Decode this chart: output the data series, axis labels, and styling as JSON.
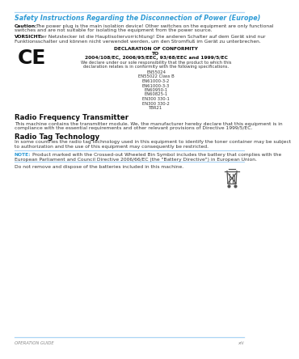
{
  "bg_color": "#ffffff",
  "line_color": "#aad4f5",
  "title_color": "#2e9bd6",
  "body_color": "#333333",
  "bold_color": "#111111",
  "note_color": "#2e9bd6",
  "footer_color": "#888888",
  "title": "Safety Instructions Regarding the Disconnection of Power (Europe)",
  "caution_label": "Caution:",
  "caution_line1": "The power plug is the main isolation device! Other switches on the equipment are only functional",
  "caution_line2": "switches and are not suitable for isolating the equipment from the power source.",
  "vorsicht_label": "VORSICHT:",
  "vorsicht_line1": "Der Netzstecker ist die Hauptisoliervorrichtung! Die anderen Schalter auf dem Gerät sind nur",
  "vorsicht_line2": "Funktionsschalter und können nicht verwendet werden, um den Stromfluß im Gerät zu unterbrechen.",
  "dec_title": "DECLARATION OF CONFORMITY",
  "dec_to": "TO",
  "dec_directives": "2004/108/EC, 2006/95/EEC, 93/68/EEC and 1999/5/EC",
  "dec_body1": "We declare under our sole responsibility that the product to which this",
  "dec_body2": "declaration relates is in conformity with the following specifications.",
  "standards": [
    "EN55024",
    "EN55022 Class B",
    "EN61000-3-2",
    "EN61000-3-3",
    "EN60950-1",
    "EN60825-1",
    "EN300 330-1",
    "EN300 330-2",
    "TBR21"
  ],
  "rf_heading": "Radio Frequency Transmitter",
  "rf_line1": "This machine contains the transmitter module. We, the manufacturer hereby declare that this equipment is in",
  "rf_line2": "compliance with the essential requirements and other relevant provisions of Directive 1999/5/EC.",
  "rt_heading": "Radio Tag Technology",
  "rt_line1": "In some countries the radio tag technology used in this equipment to identify the toner container may be subject",
  "rt_line2": "to authorization and the use of this equipment may consequently be restricted.",
  "note_label": "NOTE:",
  "note_line1": "Product marked with the Crossed-out Wheeled Bin Symbol includes the battery that complies with the",
  "note_line2": "European Parliament and Council Directive 2006/66/EC (the \"Battery Directive\") in European Union.",
  "dispose_text": "Do not remove and dispose of the batteries included in this machine.",
  "footer_left": "OPERATION GUIDE",
  "footer_right": "xiii"
}
